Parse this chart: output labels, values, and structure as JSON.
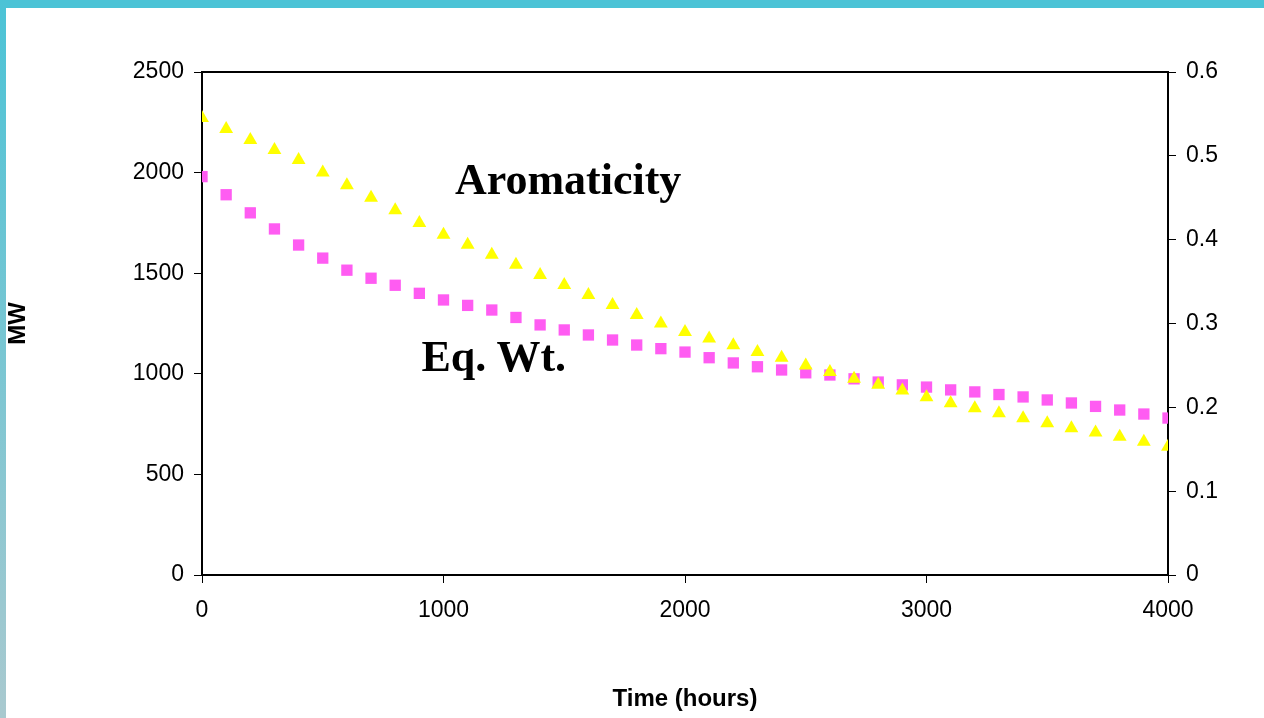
{
  "chart_data": {
    "type": "scatter",
    "xlabel": "Time (hours)",
    "ylabel": "MW",
    "x": [
      0,
      100,
      200,
      300,
      400,
      500,
      600,
      700,
      800,
      900,
      1000,
      1100,
      1200,
      1300,
      1400,
      1500,
      1600,
      1700,
      1800,
      1900,
      2000,
      2100,
      2200,
      2300,
      2400,
      2500,
      2600,
      2700,
      2800,
      2900,
      3000,
      3100,
      3200,
      3300,
      3400,
      3500,
      3600,
      3700,
      3800,
      3900,
      4000
    ],
    "series": [
      {
        "color": "#ff5cf2",
        "marker": "square",
        "values": [
          1980,
          1890,
          1800,
          1720,
          1640,
          1575,
          1515,
          1475,
          1440,
          1400,
          1367,
          1340,
          1317,
          1280,
          1243,
          1218,
          1193,
          1168,
          1143,
          1125,
          1108,
          1080,
          1054,
          1035,
          1019,
          1005,
          994,
          975,
          959,
          945,
          934,
          920,
          910,
          897,
          885,
          870,
          855,
          838,
          820,
          800,
          780
        ]
      },
      {
        "color": "#ffff00",
        "marker": "triangle",
        "axis": "y2",
        "values": [
          0.545,
          0.532,
          0.519,
          0.507,
          0.495,
          0.48,
          0.465,
          0.45,
          0.435,
          0.42,
          0.406,
          0.394,
          0.382,
          0.37,
          0.358,
          0.346,
          0.334,
          0.322,
          0.31,
          0.3,
          0.29,
          0.282,
          0.274,
          0.266,
          0.259,
          0.25,
          0.242,
          0.234,
          0.227,
          0.22,
          0.212,
          0.205,
          0.199,
          0.193,
          0.187,
          0.181,
          0.175,
          0.17,
          0.165,
          0.159,
          0.153
        ]
      }
    ],
    "xlim": [
      0,
      4000
    ],
    "xticks": [
      0,
      1000,
      2000,
      3000,
      4000
    ],
    "ylim": [
      0,
      2500
    ],
    "yticks": [
      0,
      500,
      1000,
      1500,
      2000,
      2500
    ],
    "y2lim": [
      0,
      0.6
    ],
    "y2ticks": [
      0,
      0.1,
      0.2,
      0.3,
      0.4,
      0.5,
      0.6
    ],
    "annotations": [
      "Aromaticity",
      "Eq. Wt."
    ],
    "grid": false,
    "legend": false
  }
}
